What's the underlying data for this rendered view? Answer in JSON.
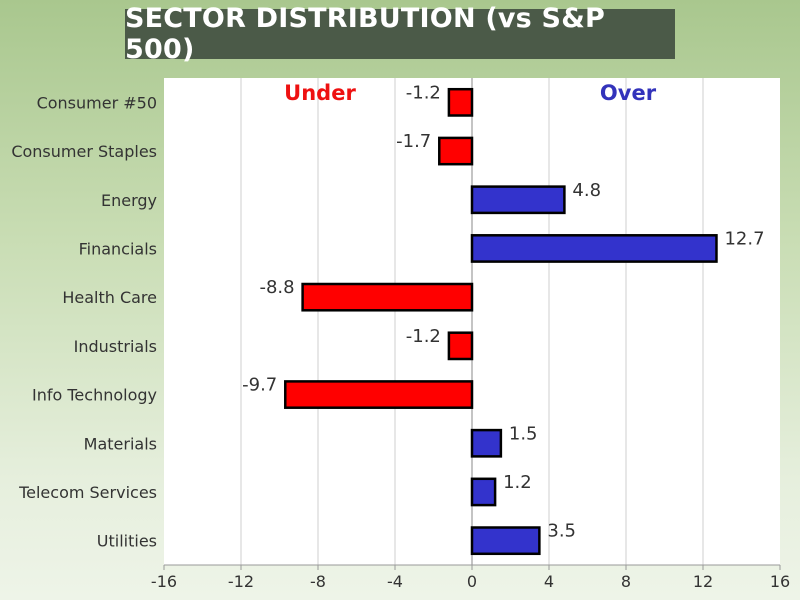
{
  "chart_data": {
    "type": "bar",
    "orientation": "horizontal",
    "title": "SECTOR DISTRIBUTION (vs S&P 500)",
    "categories": [
      "Consumer #50",
      "Consumer Staples",
      "Energy",
      "Financials",
      "Health Care",
      "Industrials",
      "Info Technology",
      "Materials",
      "Telecom Services",
      "Utilities"
    ],
    "values": [
      -1.2,
      -1.7,
      4.8,
      12.7,
      -8.8,
      -1.2,
      -9.7,
      1.5,
      1.2,
      3.5
    ],
    "value_labels": [
      "-1.2",
      "-1.7",
      "4.8",
      "12.7",
      "-8.8",
      "-1.2",
      "-9.7",
      "1.5",
      "1.2",
      "3.5"
    ],
    "xlim": [
      -16,
      16
    ],
    "xticks": [
      -16,
      -12,
      -8,
      -4,
      0,
      4,
      8,
      12,
      16
    ],
    "xlabel": "",
    "ylabel": "",
    "grid": true,
    "annotations": {
      "negative": "Under",
      "positive": "Over"
    },
    "colors": {
      "negative": "#ff0000",
      "positive": "#3333cc",
      "bar_outline": "#000000",
      "negative_text": "#ee1111",
      "positive_text": "#3333bb",
      "title_bg": "#4b5a48",
      "title_text": "#ffffff"
    }
  }
}
